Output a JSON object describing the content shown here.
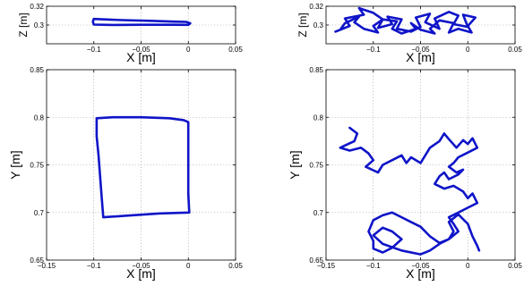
{
  "chart_data": [
    {
      "id": "top-left",
      "type": "line",
      "xlabel": "X [m]",
      "ylabel": "Z [m]",
      "xlim": [
        -0.15,
        0.05
      ],
      "ylim": [
        0.28,
        0.32
      ],
      "xticks": [
        -0.1,
        -0.05,
        0,
        0.05
      ],
      "xtick_labels": [
        "−0.1",
        "−0.05",
        "0",
        "0.05"
      ],
      "yticks": [
        0.3,
        0.32
      ],
      "ytick_labels": [
        "0.3",
        "0.32"
      ],
      "grid": true,
      "series": [
        {
          "x": [
            -0.1,
            -0.07,
            -0.04,
            -0.015,
            -0.002,
            0.002,
            0.0,
            -0.02,
            -0.05,
            -0.08,
            -0.1,
            -0.101,
            -0.1
          ],
          "y": [
            0.3065,
            0.3052,
            0.3045,
            0.3036,
            0.3033,
            0.3018,
            0.3002,
            0.3003,
            0.3003,
            0.3001,
            0.3005,
            0.3035,
            0.3065
          ]
        }
      ]
    },
    {
      "id": "top-right",
      "type": "line",
      "xlabel": "X [m]",
      "ylabel": "Z [m]",
      "xlim": [
        -0.15,
        0.05
      ],
      "ylim": [
        0.28,
        0.32
      ],
      "xticks": [
        -0.1,
        -0.05,
        0,
        0.05
      ],
      "xtick_labels": [
        "−0.1",
        "−0.05",
        "0",
        "0.05"
      ],
      "yticks": [
        0.3,
        0.32
      ],
      "ytick_labels": [
        "0.3",
        "0.32"
      ],
      "grid": true,
      "series": [
        {
          "x": [
            -0.14,
            -0.125,
            -0.13,
            -0.11,
            -0.115,
            -0.1,
            -0.09,
            -0.095,
            -0.08,
            -0.085,
            -0.07,
            -0.075,
            -0.06,
            -0.05,
            -0.055,
            -0.04,
            -0.045,
            -0.03,
            -0.035,
            -0.02,
            -0.01,
            -0.015,
            0.0,
            -0.005,
            0.008,
            0.0,
            0.004,
            -0.01,
            -0.02,
            -0.015,
            -0.03,
            -0.04,
            -0.035,
            -0.05,
            -0.06,
            -0.055,
            -0.07,
            -0.08,
            -0.075,
            -0.09,
            -0.1,
            -0.095,
            -0.11,
            -0.12,
            -0.115,
            -0.13,
            -0.135,
            -0.14
          ],
          "y": [
            0.293,
            0.299,
            0.307,
            0.311,
            0.318,
            0.313,
            0.306,
            0.297,
            0.301,
            0.309,
            0.306,
            0.296,
            0.293,
            0.298,
            0.308,
            0.312,
            0.303,
            0.296,
            0.307,
            0.314,
            0.31,
            0.301,
            0.298,
            0.311,
            0.308,
            0.299,
            0.292,
            0.296,
            0.292,
            0.302,
            0.305,
            0.296,
            0.291,
            0.295,
            0.302,
            0.296,
            0.291,
            0.296,
            0.304,
            0.306,
            0.299,
            0.292,
            0.296,
            0.303,
            0.309,
            0.302,
            0.295,
            0.293
          ]
        }
      ]
    },
    {
      "id": "bottom-left",
      "type": "line",
      "xlabel": "X [m]",
      "ylabel": "Y [m]",
      "xlim": [
        -0.15,
        0.05
      ],
      "ylim": [
        0.65,
        0.85
      ],
      "xticks": [
        -0.15,
        -0.1,
        -0.05,
        0,
        0.05
      ],
      "xtick_labels": [
        "−0.15",
        "−0.1",
        "−0.05",
        "0",
        "0.05"
      ],
      "yticks": [
        0.65,
        0.7,
        0.75,
        0.8,
        0.85
      ],
      "ytick_labels": [
        "0.65",
        "0.7",
        "0.75",
        "0.8",
        "0.85"
      ],
      "grid": true,
      "series": [
        {
          "x": [
            -0.097,
            -0.08,
            -0.05,
            -0.02,
            -0.005,
            0.0,
            0.0,
            0.0,
            0.001,
            -0.03,
            -0.06,
            -0.09,
            -0.092,
            -0.095,
            -0.097,
            -0.097
          ],
          "y": [
            0.799,
            0.8,
            0.8,
            0.799,
            0.797,
            0.795,
            0.75,
            0.72,
            0.7,
            0.699,
            0.697,
            0.695,
            0.72,
            0.76,
            0.78,
            0.799
          ]
        }
      ]
    },
    {
      "id": "bottom-right",
      "type": "line",
      "xlabel": "X [m]",
      "ylabel": "Y [m]",
      "xlim": [
        -0.15,
        0.05
      ],
      "ylim": [
        0.65,
        0.85
      ],
      "xticks": [
        -0.15,
        -0.1,
        -0.05,
        0,
        0.05
      ],
      "xtick_labels": [
        "−0.15",
        "−0.1",
        "−0.05",
        "0",
        "0.05"
      ],
      "yticks": [
        0.65,
        0.7,
        0.75,
        0.8,
        0.85
      ],
      "ytick_labels": [
        "0.65",
        "0.7",
        "0.75",
        "0.8",
        "0.85"
      ],
      "grid": true,
      "series": [
        {
          "x": [
            -0.125,
            -0.117,
            -0.12,
            -0.135,
            -0.125,
            -0.113,
            -0.105,
            -0.1,
            -0.108,
            -0.095,
            -0.09,
            -0.08,
            -0.07,
            -0.065,
            -0.06,
            -0.05,
            -0.045,
            -0.04,
            -0.03,
            -0.025,
            -0.02,
            -0.012,
            -0.005,
            0.0,
            0.005,
            0.01,
            0.0,
            -0.01,
            -0.015,
            -0.02,
            -0.012,
            -0.005,
            -0.01,
            -0.02,
            -0.025,
            -0.03,
            -0.035,
            -0.025,
            -0.015,
            -0.005,
            0.0,
            0.005,
            0.01,
            0.0,
            -0.01,
            -0.02,
            -0.015,
            -0.01,
            -0.02,
            -0.03,
            -0.04,
            -0.05,
            -0.06,
            -0.07,
            -0.08,
            -0.09,
            -0.1,
            -0.105,
            -0.1,
            -0.1,
            -0.09,
            -0.08,
            -0.07,
            -0.08,
            -0.09,
            -0.1,
            -0.09,
            -0.07,
            -0.05,
            -0.04,
            -0.03,
            -0.02,
            -0.015,
            -0.02,
            -0.01,
            0.0,
            0.005,
            0.01,
            0.012
          ],
          "y": [
            0.789,
            0.783,
            0.775,
            0.768,
            0.765,
            0.768,
            0.762,
            0.755,
            0.748,
            0.742,
            0.75,
            0.755,
            0.76,
            0.752,
            0.758,
            0.752,
            0.76,
            0.768,
            0.775,
            0.783,
            0.777,
            0.768,
            0.776,
            0.772,
            0.778,
            0.768,
            0.763,
            0.758,
            0.752,
            0.748,
            0.742,
            0.745,
            0.74,
            0.735,
            0.742,
            0.738,
            0.73,
            0.725,
            0.728,
            0.722,
            0.715,
            0.72,
            0.71,
            0.705,
            0.7,
            0.695,
            0.688,
            0.68,
            0.672,
            0.668,
            0.675,
            0.685,
            0.69,
            0.695,
            0.7,
            0.697,
            0.692,
            0.68,
            0.67,
            0.662,
            0.658,
            0.663,
            0.672,
            0.68,
            0.684,
            0.676,
            0.667,
            0.66,
            0.656,
            0.66,
            0.667,
            0.672,
            0.68,
            0.69,
            0.698,
            0.688,
            0.675,
            0.665,
            0.66
          ]
        }
      ]
    }
  ]
}
